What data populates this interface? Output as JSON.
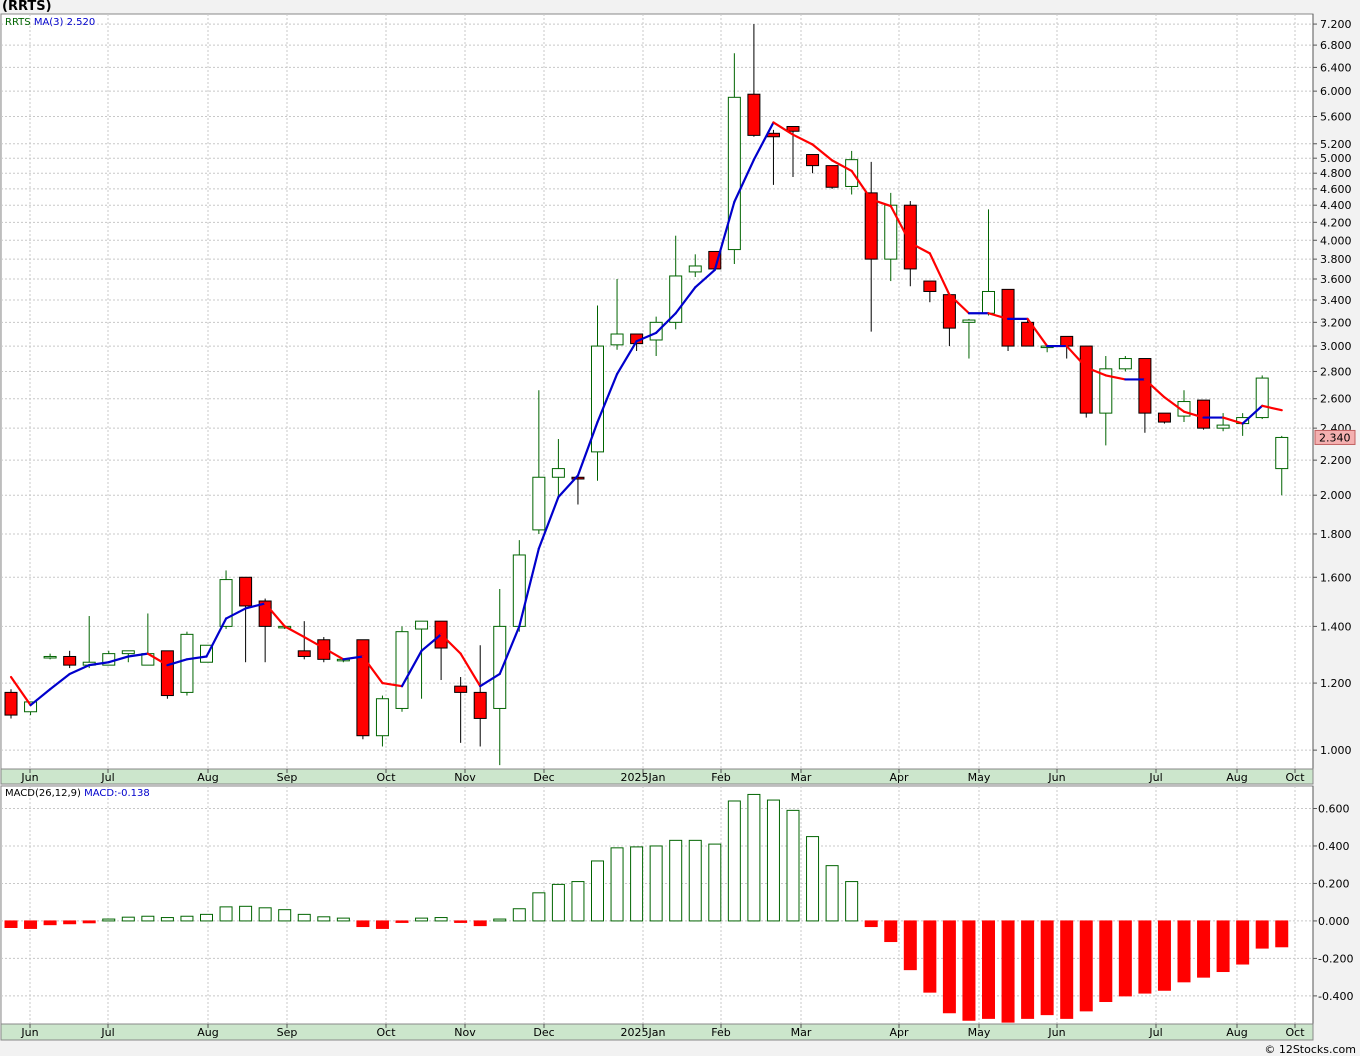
{
  "header": {
    "title": "(RRTS)"
  },
  "footer": {
    "credit": "© 12Stocks.com"
  },
  "colors": {
    "up_candle_border": "#006400",
    "down_candle_fill": "#ff0000",
    "ma_up": "#0000cc",
    "ma_down": "#ff0000",
    "axis_bg": "#cce6cc",
    "last_price_bg": "#f4b0b0"
  },
  "chart_data": [
    {
      "type": "candlestick",
      "legend": {
        "symbol": "RRTS",
        "ma_label": "MA(3)",
        "ma_value": "2.520"
      },
      "y_scale": "log",
      "ylim": [
        0.95,
        7.4
      ],
      "y_ticks": [
        "1.000",
        "1.200",
        "1.400",
        "1.600",
        "1.800",
        "2.000",
        "2.200",
        "2.400",
        "2.600",
        "2.800",
        "3.000",
        "3.200",
        "3.400",
        "3.600",
        "3.800",
        "4.000",
        "4.200",
        "4.400",
        "4.600",
        "4.800",
        "5.000",
        "5.200",
        "5.600",
        "6.000",
        "6.400",
        "6.800",
        "7.200"
      ],
      "x_labels": [
        "Jun",
        "Jul",
        "Aug",
        "Sep",
        "Oct",
        "Nov",
        "Dec",
        "2025Jan",
        "Feb",
        "Mar",
        "Apr",
        "May",
        "Jun",
        "Jul",
        "Aug",
        "Oct"
      ],
      "last_price_label": "2.340",
      "series": [
        {
          "o": 1.17,
          "h": 1.18,
          "l": 1.09,
          "c": 1.1
        },
        {
          "o": 1.11,
          "h": 1.14,
          "l": 1.1,
          "c": 1.14
        },
        {
          "o": 1.29,
          "h": 1.3,
          "l": 1.28,
          "c": 1.29
        },
        {
          "o": 1.29,
          "h": 1.31,
          "l": 1.25,
          "c": 1.26
        },
        {
          "o": 1.26,
          "h": 1.44,
          "l": 1.25,
          "c": 1.27
        },
        {
          "o": 1.26,
          "h": 1.31,
          "l": 1.26,
          "c": 1.3
        },
        {
          "o": 1.3,
          "h": 1.31,
          "l": 1.27,
          "c": 1.31
        },
        {
          "o": 1.26,
          "h": 1.45,
          "l": 1.26,
          "c": 1.3
        },
        {
          "o": 1.31,
          "h": 1.31,
          "l": 1.15,
          "c": 1.16
        },
        {
          "o": 1.17,
          "h": 1.38,
          "l": 1.16,
          "c": 1.37
        },
        {
          "o": 1.27,
          "h": 1.33,
          "l": 1.27,
          "c": 1.33
        },
        {
          "o": 1.4,
          "h": 1.63,
          "l": 1.39,
          "c": 1.59
        },
        {
          "o": 1.6,
          "h": 1.6,
          "l": 1.27,
          "c": 1.48
        },
        {
          "o": 1.5,
          "h": 1.51,
          "l": 1.27,
          "c": 1.4
        },
        {
          "o": 1.4,
          "h": 1.4,
          "l": 1.39,
          "c": 1.4
        },
        {
          "o": 1.31,
          "h": 1.42,
          "l": 1.28,
          "c": 1.29
        },
        {
          "o": 1.35,
          "h": 1.36,
          "l": 1.27,
          "c": 1.28
        },
        {
          "o": 1.28,
          "h": 1.28,
          "l": 1.27,
          "c": 1.28
        },
        {
          "o": 1.35,
          "h": 1.35,
          "l": 1.03,
          "c": 1.04
        },
        {
          "o": 1.04,
          "h": 1.16,
          "l": 1.01,
          "c": 1.15
        },
        {
          "o": 1.12,
          "h": 1.4,
          "l": 1.11,
          "c": 1.38
        },
        {
          "o": 1.39,
          "h": 1.42,
          "l": 1.15,
          "c": 1.42
        },
        {
          "o": 1.42,
          "h": 1.42,
          "l": 1.21,
          "c": 1.32
        },
        {
          "o": 1.19,
          "h": 1.22,
          "l": 1.02,
          "c": 1.17
        },
        {
          "o": 1.17,
          "h": 1.33,
          "l": 1.01,
          "c": 1.09
        },
        {
          "o": 1.12,
          "h": 1.55,
          "l": 0.96,
          "c": 1.4
        },
        {
          "o": 1.4,
          "h": 1.77,
          "l": 1.38,
          "c": 1.7
        },
        {
          "o": 1.82,
          "h": 2.66,
          "l": 1.8,
          "c": 2.1
        },
        {
          "o": 2.1,
          "h": 2.33,
          "l": 1.98,
          "c": 2.15
        },
        {
          "o": 2.1,
          "h": 2.1,
          "l": 1.95,
          "c": 2.09
        },
        {
          "o": 2.25,
          "h": 3.35,
          "l": 2.08,
          "c": 3.0
        },
        {
          "o": 3.01,
          "h": 3.6,
          "l": 2.97,
          "c": 3.1
        },
        {
          "o": 3.1,
          "h": 3.1,
          "l": 2.96,
          "c": 3.02
        },
        {
          "o": 3.05,
          "h": 3.25,
          "l": 2.92,
          "c": 3.2
        },
        {
          "o": 3.2,
          "h": 4.05,
          "l": 3.14,
          "c": 3.63
        },
        {
          "o": 3.67,
          "h": 3.85,
          "l": 3.62,
          "c": 3.73
        },
        {
          "o": 3.88,
          "h": 3.88,
          "l": 3.7,
          "c": 3.7
        },
        {
          "o": 3.9,
          "h": 6.65,
          "l": 3.75,
          "c": 5.9
        },
        {
          "o": 5.95,
          "h": 7.2,
          "l": 5.3,
          "c": 5.32
        },
        {
          "o": 5.35,
          "h": 5.4,
          "l": 4.65,
          "c": 5.3
        },
        {
          "o": 5.45,
          "h": 5.45,
          "l": 4.75,
          "c": 5.38
        },
        {
          "o": 5.05,
          "h": 5.05,
          "l": 4.8,
          "c": 4.9
        },
        {
          "o": 4.9,
          "h": 4.9,
          "l": 4.6,
          "c": 4.62
        },
        {
          "o": 4.63,
          "h": 5.1,
          "l": 4.53,
          "c": 4.98
        },
        {
          "o": 4.55,
          "h": 4.95,
          "l": 3.12,
          "c": 3.8
        },
        {
          "o": 3.8,
          "h": 4.55,
          "l": 3.58,
          "c": 4.4
        },
        {
          "o": 4.4,
          "h": 4.45,
          "l": 3.53,
          "c": 3.7
        },
        {
          "o": 3.58,
          "h": 3.58,
          "l": 3.38,
          "c": 3.48
        },
        {
          "o": 3.45,
          "h": 3.45,
          "l": 3.0,
          "c": 3.15
        },
        {
          "o": 3.2,
          "h": 3.23,
          "l": 2.9,
          "c": 3.22
        },
        {
          "o": 3.28,
          "h": 4.35,
          "l": 3.26,
          "c": 3.48
        },
        {
          "o": 3.5,
          "h": 3.5,
          "l": 2.96,
          "c": 3.0
        },
        {
          "o": 3.2,
          "h": 3.22,
          "l": 3.0,
          "c": 3.0
        },
        {
          "o": 3.0,
          "h": 3.0,
          "l": 2.95,
          "c": 3.0
        },
        {
          "o": 3.08,
          "h": 3.08,
          "l": 2.9,
          "c": 3.0
        },
        {
          "o": 3.0,
          "h": 3.0,
          "l": 2.47,
          "c": 2.5
        },
        {
          "o": 2.5,
          "h": 2.92,
          "l": 2.29,
          "c": 2.82
        },
        {
          "o": 2.82,
          "h": 2.92,
          "l": 2.8,
          "c": 2.9
        },
        {
          "o": 2.9,
          "h": 2.9,
          "l": 2.37,
          "c": 2.5
        },
        {
          "o": 2.5,
          "h": 2.5,
          "l": 2.43,
          "c": 2.44
        },
        {
          "o": 2.48,
          "h": 2.66,
          "l": 2.44,
          "c": 2.58
        },
        {
          "o": 2.59,
          "h": 2.59,
          "l": 2.39,
          "c": 2.4
        },
        {
          "o": 2.4,
          "h": 2.5,
          "l": 2.38,
          "c": 2.42
        },
        {
          "o": 2.43,
          "h": 2.5,
          "l": 2.35,
          "c": 2.47
        },
        {
          "o": 2.47,
          "h": 2.77,
          "l": 2.46,
          "c": 2.75
        },
        {
          "o": 2.15,
          "h": 2.35,
          "l": 2.0,
          "c": 2.34
        }
      ],
      "ma3": [
        1.22,
        1.13,
        1.18,
        1.23,
        1.26,
        1.27,
        1.29,
        1.3,
        1.26,
        1.28,
        1.29,
        1.43,
        1.47,
        1.49,
        1.4,
        1.36,
        1.32,
        1.28,
        1.29,
        1.2,
        1.19,
        1.31,
        1.37,
        1.3,
        1.19,
        1.23,
        1.4,
        1.73,
        1.99,
        2.11,
        2.44,
        2.78,
        3.04,
        3.11,
        3.28,
        3.52,
        3.69,
        4.44,
        4.98,
        5.51,
        5.33,
        5.19,
        4.97,
        4.83,
        4.47,
        4.39,
        3.97,
        3.86,
        3.45,
        3.28,
        3.28,
        3.23,
        3.23,
        3.0,
        3.0,
        2.83,
        2.77,
        2.74,
        2.74,
        2.61,
        2.51,
        2.47,
        2.47,
        2.43,
        2.55,
        2.52
      ]
    },
    {
      "type": "bar",
      "legend": {
        "label": "MACD(26,12,9)",
        "value_label": "MACD:-0.138"
      },
      "ylim": [
        -0.55,
        0.72
      ],
      "y_ticks": [
        "-0.400",
        "-0.200",
        "0.000",
        "0.200",
        "0.400",
        "0.600"
      ],
      "x_labels": [
        "Jun",
        "Jul",
        "Aug",
        "Sep",
        "Oct",
        "Nov",
        "Dec",
        "2025Jan",
        "Feb",
        "Mar",
        "Apr",
        "May",
        "Jun",
        "Jul",
        "Aug",
        "Oct"
      ],
      "values": [
        -0.035,
        -0.04,
        -0.02,
        -0.015,
        -0.01,
        0.01,
        0.02,
        0.025,
        0.018,
        0.025,
        0.035,
        0.075,
        0.078,
        0.07,
        0.06,
        0.035,
        0.022,
        0.015,
        -0.03,
        -0.04,
        -0.008,
        0.015,
        0.018,
        -0.005,
        -0.025,
        0.01,
        0.065,
        0.15,
        0.195,
        0.21,
        0.32,
        0.39,
        0.395,
        0.4,
        0.43,
        0.43,
        0.41,
        0.64,
        0.675,
        0.645,
        0.59,
        0.45,
        0.295,
        0.21,
        -0.03,
        -0.11,
        -0.26,
        -0.38,
        -0.49,
        -0.53,
        -0.52,
        -0.54,
        -0.52,
        -0.5,
        -0.52,
        -0.48,
        -0.43,
        -0.4,
        -0.385,
        -0.37,
        -0.325,
        -0.3,
        -0.27,
        -0.23,
        -0.145,
        -0.138
      ]
    }
  ]
}
